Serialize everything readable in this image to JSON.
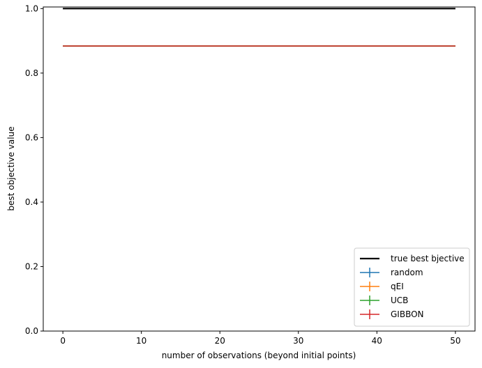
{
  "chart_data": {
    "type": "line",
    "title": "",
    "xlabel": "number of observations (beyond initial points)",
    "ylabel": "best objective value",
    "xlim": [
      -2.5,
      52.5
    ],
    "ylim": [
      0.0,
      1.005
    ],
    "xticks": [
      0,
      10,
      20,
      30,
      40,
      50
    ],
    "yticks": [
      0.0,
      0.2,
      0.4,
      0.6,
      0.8,
      1.0
    ],
    "xtick_labels": [
      "0",
      "10",
      "20",
      "30",
      "40",
      "50"
    ],
    "ytick_labels": [
      "0.0",
      "0.2",
      "0.4",
      "0.6",
      "0.8",
      "1.0"
    ],
    "grid": false,
    "legend_position": "lower-right",
    "series": [
      {
        "name": "true best bjective",
        "color": "#000000",
        "style": "line",
        "x": [
          0,
          50
        ],
        "y": [
          1.0,
          1.0
        ]
      },
      {
        "name": "random",
        "color": "#1f77b4",
        "style": "errorbar",
        "x": [
          0,
          50
        ],
        "y": [
          0.884,
          0.884
        ]
      },
      {
        "name": "qEI",
        "color": "#ff7f0e",
        "style": "errorbar",
        "x": [
          0,
          50
        ],
        "y": [
          0.884,
          0.884
        ]
      },
      {
        "name": "UCB",
        "color": "#2ca02c",
        "style": "errorbar",
        "x": [
          0,
          50
        ],
        "y": [
          0.884,
          0.884
        ]
      },
      {
        "name": "GIBBON",
        "color": "#d62728",
        "style": "errorbar",
        "x": [
          0,
          50
        ],
        "y": [
          0.884,
          0.884
        ]
      }
    ]
  }
}
